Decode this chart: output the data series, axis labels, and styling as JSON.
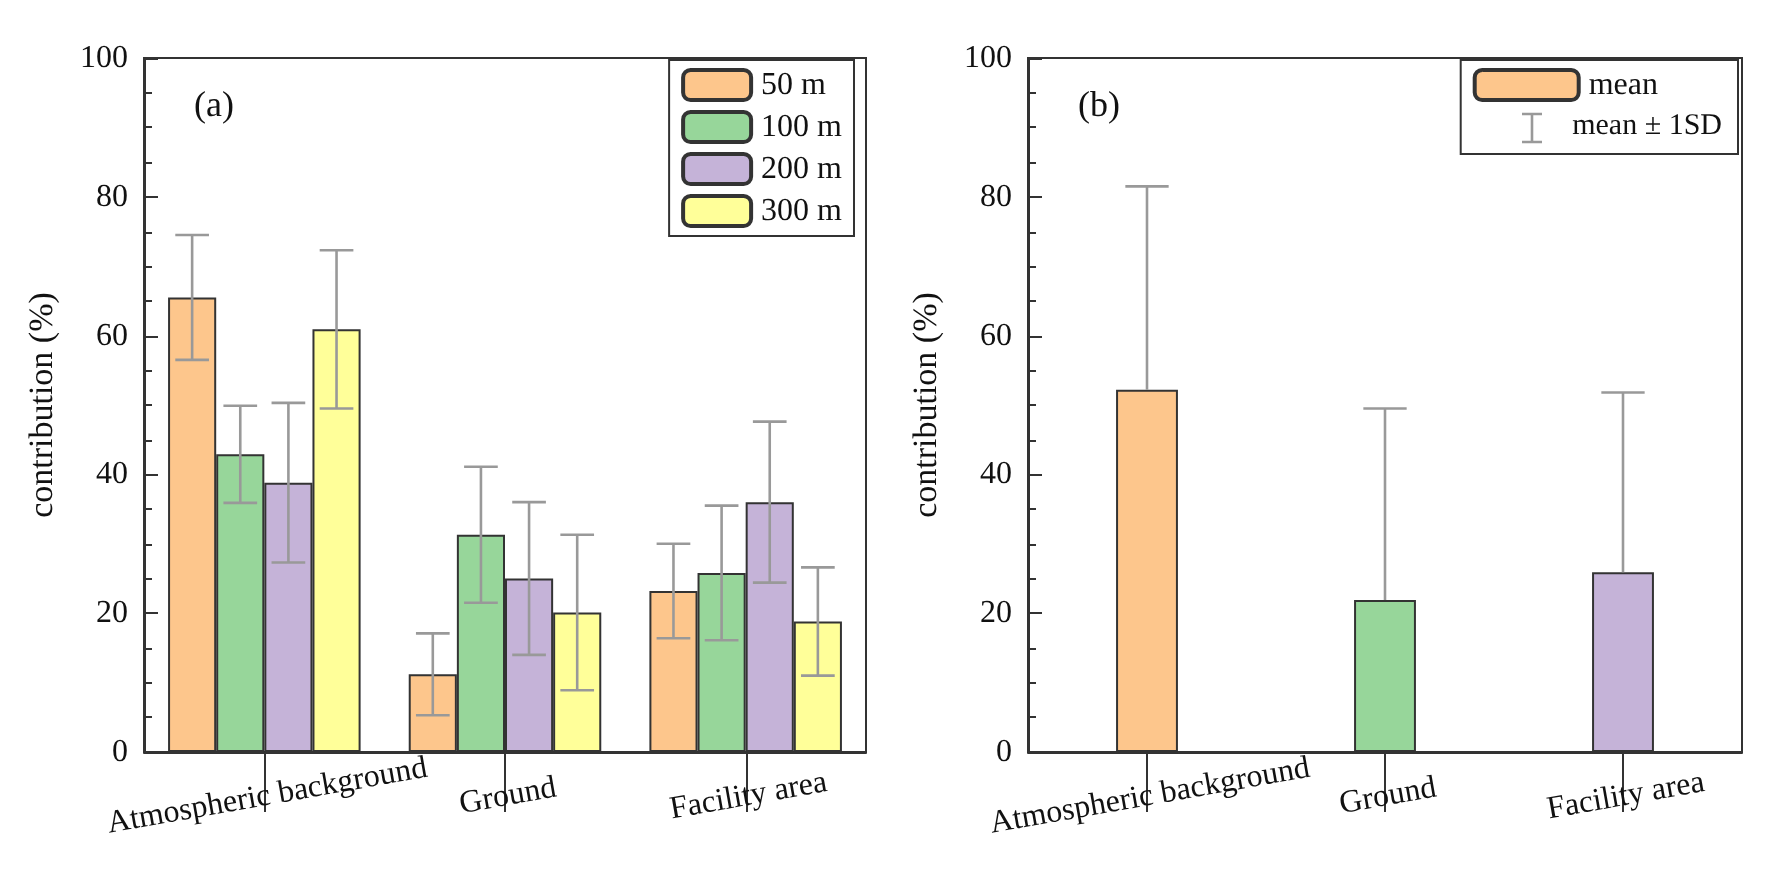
{
  "chart_data": [
    {
      "type": "bar",
      "title": "(a)",
      "ylabel": "contribution (%)",
      "categories": [
        "Atmospheric background",
        "Ground",
        "Facility area"
      ],
      "ylim": [
        0,
        100
      ],
      "yticks": [
        0,
        20,
        40,
        60,
        80,
        100
      ],
      "grid": false,
      "legend": "top right",
      "series": [
        {
          "name": "50 m",
          "color": "#fdc68c",
          "values": [
            65.5,
            11.2,
            23.2
          ],
          "errors": [
            9,
            5.9,
            6.8
          ]
        },
        {
          "name": "100 m",
          "color": "#97d69a",
          "values": [
            42.9,
            31.3,
            25.8
          ],
          "errors": [
            7,
            9.8,
            9.7
          ]
        },
        {
          "name": "200 m",
          "color": "#c5b3d8",
          "values": [
            38.8,
            25,
            36
          ],
          "errors": [
            11.5,
            11,
            11.6
          ]
        },
        {
          "name": "300 m",
          "color": "#ffff99",
          "values": [
            60.9,
            20.1,
            18.8
          ],
          "errors": [
            11.4,
            11.2,
            7.8
          ]
        }
      ]
    },
    {
      "type": "bar",
      "title": "(b)",
      "ylabel": "contribution (%)",
      "categories": [
        "Atmospheric background",
        "Ground",
        "Facility area"
      ],
      "ylim": [
        0,
        100
      ],
      "yticks": [
        0,
        20,
        40,
        60,
        80,
        100
      ],
      "grid": false,
      "legend": "top right",
      "annotations": [
        "mean ± 1SD"
      ],
      "series": [
        {
          "name": "mean",
          "colors": [
            "#fdc68c",
            "#97d69a",
            "#c5b3d8"
          ],
          "values": [
            52.2,
            21.9,
            25.9
          ],
          "errors": [
            [
              52.2,
              81.5
            ],
            [
              21.9,
              49.5
            ],
            [
              25.9,
              51.8
            ]
          ]
        }
      ]
    }
  ]
}
